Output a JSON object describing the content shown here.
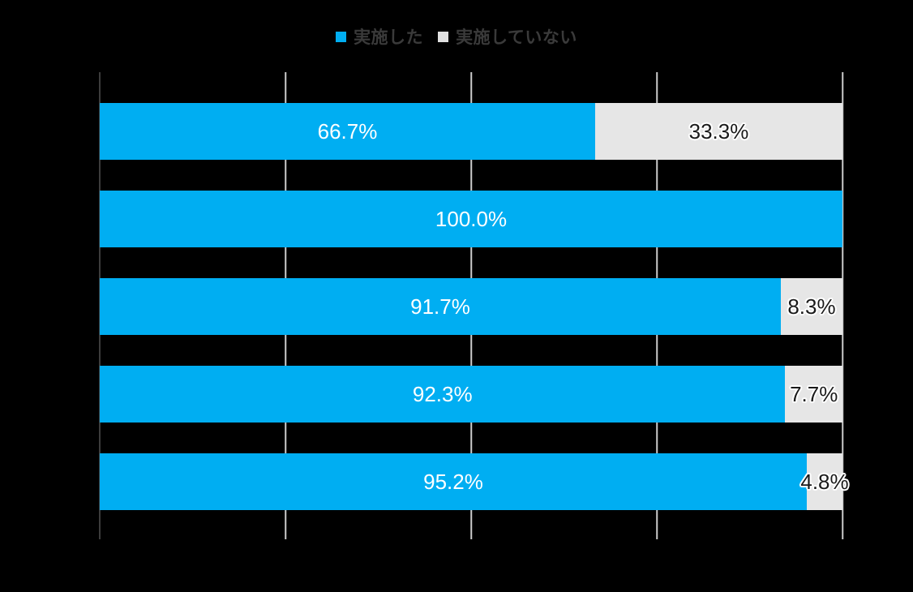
{
  "page": {
    "background_color": "#000000"
  },
  "legend": {
    "position": "top-center",
    "items": [
      {
        "label": "実施した",
        "color": "#00aef2"
      },
      {
        "label": "実施していない",
        "color": "#e0e0e0"
      }
    ]
  },
  "chart_data": {
    "type": "bar",
    "orientation": "horizontal",
    "stacked": true,
    "title": "",
    "xlabel": "",
    "ylabel": "",
    "xlim": [
      0,
      100
    ],
    "gridlines_percent": [
      0,
      25,
      50,
      75,
      100
    ],
    "grid": true,
    "legend_position": "top",
    "series": [
      {
        "name": "実施した",
        "color": "#00aef2",
        "values": [
          66.7,
          100.0,
          91.7,
          92.3,
          95.2
        ]
      },
      {
        "name": "実施していない",
        "color": "#e6e6e6",
        "values": [
          33.3,
          0.0,
          8.3,
          7.7,
          4.8
        ]
      }
    ],
    "data_labels": [
      {
        "primary": "66.7%",
        "secondary": "33.3%"
      },
      {
        "primary": "100.0%",
        "secondary": ""
      },
      {
        "primary": "91.7%",
        "secondary": "8.3%"
      },
      {
        "primary": "92.3%",
        "secondary": "7.7%"
      },
      {
        "primary": "95.2%",
        "secondary": "4.8%"
      }
    ],
    "colors": {
      "gridline": "#cccccc",
      "axis_line": "#3c3c3c",
      "label_on_primary": "#ffffff",
      "label_on_secondary": "#1a1a1a",
      "label_halo": "#ffffff",
      "legend_text": "#3a3a3a"
    }
  }
}
